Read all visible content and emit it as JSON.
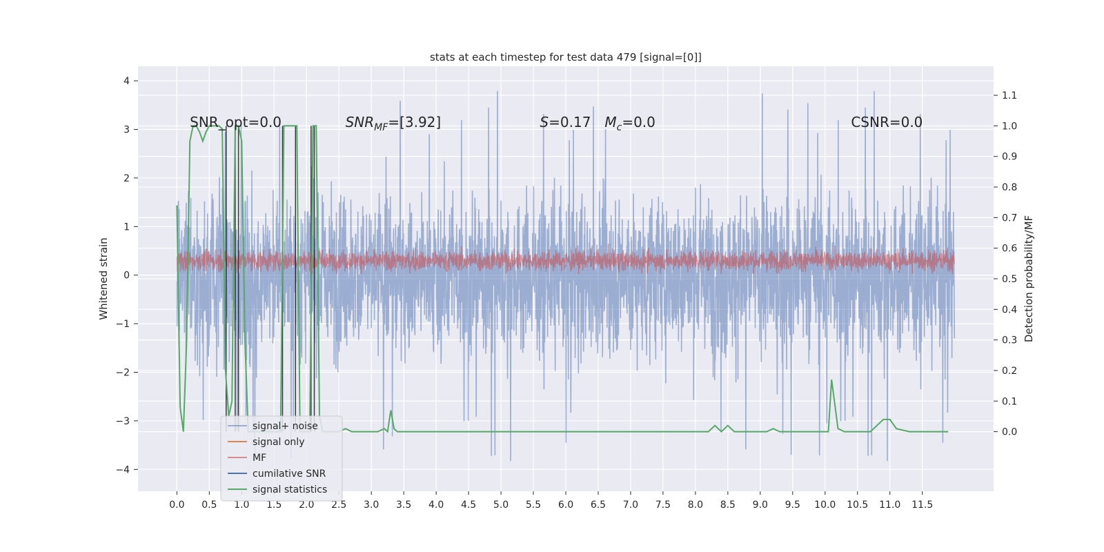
{
  "chart_data": {
    "type": "line",
    "title": "stats at each timestep for test data 479 [signal=[0]]",
    "ylabel": "Whitened strain",
    "y2label": "Detection probability/MF",
    "xlim": [
      -0.6,
      12.6
    ],
    "ylim": [
      -4.45,
      4.3
    ],
    "y2lim": [
      -0.195,
      1.195
    ],
    "x_ticks": [
      "0.0",
      "0.5",
      "1.0",
      "1.5",
      "2.0",
      "2.5",
      "3.0",
      "3.5",
      "4.0",
      "4.5",
      "5.0",
      "5.5",
      "6.0",
      "6.5",
      "7.0",
      "7.5",
      "8.0",
      "8.5",
      "9.0",
      "9.5",
      "10.0",
      "10.5",
      "11.0",
      "11.5"
    ],
    "y_ticks": [
      "4",
      "3",
      "2",
      "1",
      "0",
      "−1",
      "−2",
      "−3",
      "−4"
    ],
    "y2_ticks": [
      "1.1",
      "1.0",
      "0.9",
      "0.8",
      "0.7",
      "0.6",
      "0.5",
      "0.4",
      "0.3",
      "0.2",
      "0.1",
      "0.0"
    ],
    "grid": true,
    "legend_position": "lower-left",
    "annotations": [
      {
        "text": "SNR_opt=0.0",
        "x": 0.2,
        "y": 3.05
      },
      {
        "text": "SNR",
        "sub": "MF",
        "rest": "=[3.92]",
        "x": 2.6,
        "y": 3.05
      },
      {
        "text": "S",
        "rest": "=0.17",
        "x": 5.6,
        "y": 3.05
      },
      {
        "text": "M",
        "sub": "c",
        "rest": "=0.0",
        "x": 6.6,
        "y": 3.05
      },
      {
        "text": "CSNR=0.0",
        "x": 10.4,
        "y": 3.05
      }
    ],
    "series": [
      {
        "name": "signal+ noise",
        "color": "#4c72b0",
        "opacity": 0.5,
        "axis": "left",
        "x_start": 0.0,
        "x_end": 12.0,
        "points": 3072,
        "amplitude": 1.85,
        "spike_level": 3.9,
        "min_level": -4.1
      },
      {
        "name": "signal only",
        "color": "#dd8452",
        "axis": "left",
        "constant": 0
      },
      {
        "name": "MF",
        "color": "#c44e52",
        "opacity": 0.55,
        "axis": "left",
        "x_start": 0.0,
        "x_end": 12.0,
        "points": 3072,
        "center": 0.3,
        "spread": 0.32,
        "max_level": 0.97
      },
      {
        "name": "cumilative SNR",
        "color": "#4c72b0",
        "axis": "left",
        "constant": 0
      },
      {
        "name": "signal statistics",
        "color": "#55a868",
        "axis": "right",
        "x": [
          0.0,
          0.05,
          0.1,
          0.15,
          0.2,
          0.25,
          0.3,
          0.35,
          0.4,
          0.45,
          0.5,
          0.55,
          0.6,
          0.65,
          0.7,
          0.75,
          0.8,
          0.85,
          0.9,
          0.95,
          1.0,
          1.05,
          1.1,
          1.15,
          1.2,
          1.25,
          1.3,
          1.35,
          1.4,
          1.45,
          1.5,
          1.55,
          1.6,
          1.65,
          1.7,
          1.75,
          1.8,
          1.85,
          1.9,
          1.95,
          2.0,
          2.05,
          2.1,
          2.15,
          2.2,
          2.25,
          2.3,
          2.4,
          2.5,
          2.6,
          2.7,
          2.8,
          2.9,
          3.0,
          3.1,
          3.2,
          3.25,
          3.3,
          3.35,
          3.4,
          3.5,
          4.0,
          5.0,
          6.0,
          7.0,
          8.0,
          8.2,
          8.3,
          8.4,
          8.5,
          8.6,
          9.0,
          9.1,
          9.2,
          9.3,
          9.5,
          10.0,
          10.05,
          10.1,
          10.2,
          10.3,
          10.5,
          10.7,
          10.8,
          10.9,
          11.0,
          11.1,
          11.3,
          11.5,
          11.9
        ],
        "y": [
          0.74,
          0.08,
          0.0,
          0.3,
          0.95,
          1.0,
          1.0,
          0.98,
          0.95,
          0.98,
          1.0,
          1.0,
          1.0,
          1.0,
          0.99,
          0.2,
          0.05,
          0.1,
          1.0,
          1.0,
          0.95,
          0.3,
          0.0,
          0.0,
          0.0,
          0.0,
          0.0,
          0.0,
          0.0,
          0.0,
          0.0,
          0.0,
          0.0,
          1.0,
          1.0,
          1.0,
          1.0,
          1.0,
          0.0,
          0.0,
          0.0,
          0.0,
          1.0,
          1.0,
          0.05,
          0.0,
          0.0,
          0.0,
          0.0,
          0.01,
          0.0,
          0.0,
          0.0,
          0.0,
          0.0,
          0.01,
          0.0,
          0.07,
          0.01,
          0.0,
          0.0,
          0.0,
          0.0,
          0.0,
          0.0,
          0.0,
          0.0,
          0.02,
          0.0,
          0.02,
          0.0,
          0.0,
          0.0,
          0.01,
          0.0,
          0.0,
          0.0,
          0.0,
          0.17,
          0.01,
          0.0,
          0.0,
          0.0,
          0.02,
          0.04,
          0.04,
          0.01,
          0.0,
          0.0,
          0.0
        ]
      }
    ],
    "vertical_lines": {
      "color": "#1a1a1a",
      "x": [
        0.76,
        0.9,
        0.95,
        1.63,
        1.83,
        2.07,
        2.12
      ]
    }
  }
}
